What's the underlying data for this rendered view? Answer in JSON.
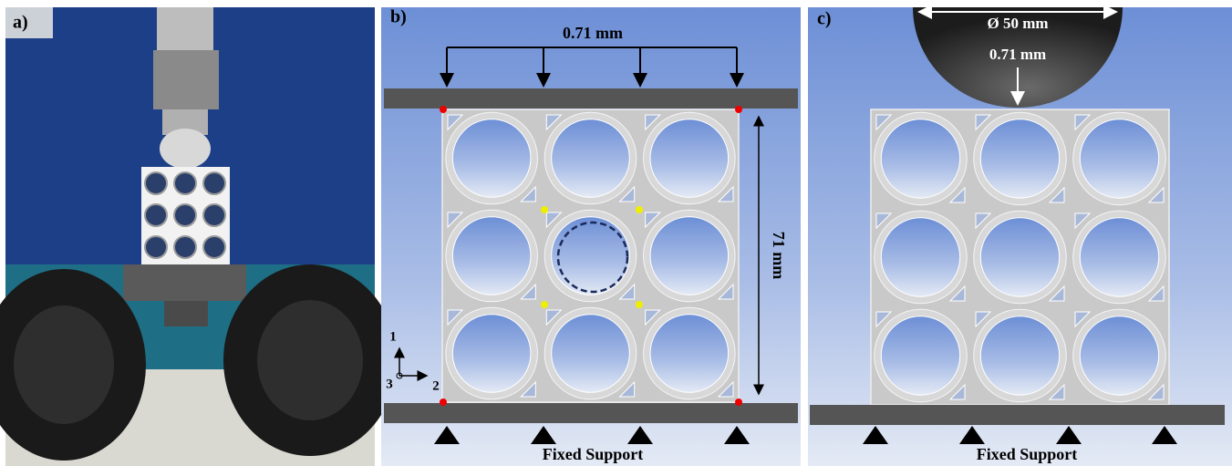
{
  "panels": [
    {
      "label": "a)"
    },
    {
      "label": "b)",
      "load": "0.71 mm",
      "height": "71 mm",
      "axes": [
        "1",
        "2",
        "3"
      ],
      "support": "Fixed Support"
    },
    {
      "label": "c)",
      "diameter": "Ø 50 mm",
      "load": "0.71 mm",
      "support": "Fixed Support"
    }
  ]
}
